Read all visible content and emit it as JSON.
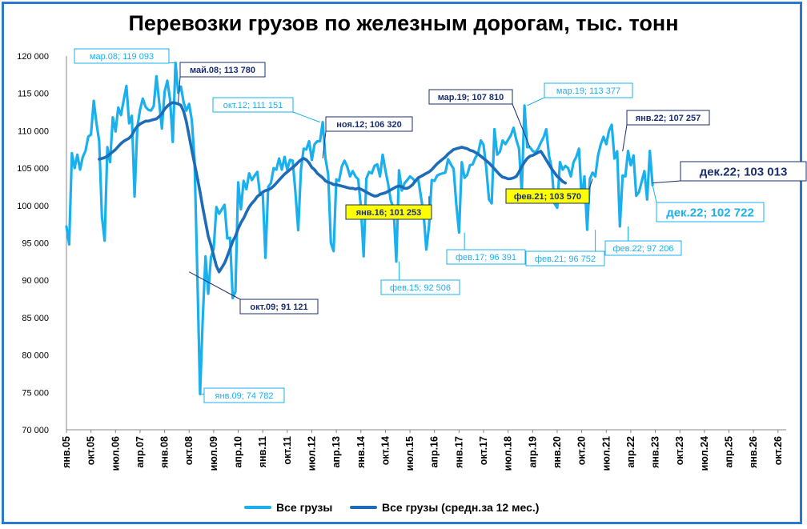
{
  "chart_data": {
    "type": "line",
    "title": "Перевозки грузов по железным дорогам, тыс. тонн",
    "xlabel": "",
    "ylabel": "",
    "ylim": [
      70000,
      120000
    ],
    "yticks": [
      "70 000",
      "75 000",
      "80 000",
      "85 000",
      "90 000",
      "95 000",
      "100 000",
      "105 000",
      "110 000",
      "115 000",
      "120 000"
    ],
    "xticks": [
      "янв.05",
      "окт.05",
      "июл.06",
      "апр.07",
      "янв.08",
      "окт.08",
      "июл.09",
      "апр.10",
      "янв.11",
      "окт.11",
      "июл.12",
      "апр.13",
      "янв.14",
      "окт.14",
      "июл.15",
      "апр.16",
      "янв.17",
      "окт.17",
      "июл.18",
      "апр.19",
      "янв.20",
      "окт.20",
      "июл.21",
      "апр.22",
      "янв.23",
      "окт.23",
      "июл.24",
      "апр.25",
      "янв.26",
      "окт.26"
    ],
    "x_start": "янв.05",
    "x_months_total": 264,
    "grid": false,
    "legend_position": "bottom",
    "colors": {
      "monthly": "#1ab0ee",
      "avg": "#1e6cb8",
      "frame": "#2a78d0",
      "highlight": "#ffff00",
      "dark_label": "#1a2e6e"
    },
    "series": [
      {
        "name": "Все грузы",
        "values": [
          97200,
          94800,
          107000,
          105000,
          106800,
          104800,
          106500,
          107300,
          109200,
          109500,
          114000,
          111000,
          108600,
          98500,
          95300,
          107800,
          105800,
          111800,
          109900,
          113100,
          112100,
          114100,
          116000,
          111000,
          112000,
          101200,
          110500,
          112800,
          114300,
          113200,
          112800,
          112700,
          113300,
          117300,
          113900,
          110300,
          115200,
          116700,
          114200,
          108500,
          119093,
          115100,
          115900,
          113780,
          112700,
          113600,
          111400,
          106100,
          90700,
          74782,
          85000,
          93200,
          88200,
          93100,
          94200,
          99800,
          98900,
          99500,
          100100,
          95600,
          95700,
          87600,
          88500,
          103100,
          99500,
          103300,
          102200,
          104300,
          103400,
          104000,
          104500,
          101400,
          101600,
          93000,
          102500,
          103000,
          105000,
          104800,
          106300,
          104800,
          106500,
          104800,
          106100,
          106000,
          101800,
          96700,
          104800,
          107600,
          107500,
          108600,
          106100,
          108200,
          108600,
          108600,
          111151,
          106320,
          104200,
          95000,
          93900,
          103500,
          103300,
          105200,
          106000,
          105200,
          103900,
          104600,
          103900,
          103500,
          99800,
          93200,
          103600,
          104500,
          104300,
          105300,
          105500,
          103900,
          106800,
          104700,
          102900,
          100600,
          99700,
          92506,
          104700,
          102000,
          103000,
          103400,
          103900,
          103600,
          103200,
          103600,
          101253,
          98900,
          94100,
          97300,
          103400,
          103300,
          104000,
          104200,
          104300,
          104400,
          106200,
          105500,
          104900,
          100100,
          96391,
          105800,
          103700,
          104100,
          105400,
          105500,
          106400,
          107000,
          108700,
          108100,
          105000,
          100800,
          100300,
          110200,
          106800,
          107200,
          108700,
          108200,
          108800,
          109400,
          110400,
          108800,
          107600,
          101700,
          113377,
          107810,
          107800,
          107300,
          107100,
          107600,
          108400,
          109100,
          110200,
          106700,
          105000,
          100300,
          99700,
          105800,
          104800,
          105300,
          105000,
          103900,
          105800,
          106500,
          107600,
          100800,
          103900,
          96752,
          103570,
          104400,
          103900,
          106700,
          108200,
          109200,
          108200,
          110000,
          110800,
          106300,
          107257,
          97206,
          104000,
          103900,
          107300,
          105400,
          106700,
          101300,
          101800,
          103200,
          104600,
          100800,
          107300,
          102722
        ],
        "first_index": 0
      },
      {
        "name": "Все грузы (средн.за 12 мес.)",
        "values": [
          106200,
          106300,
          106400,
          106600,
          106900,
          107200,
          107500,
          107900,
          108300,
          108600,
          108800,
          109000,
          109400,
          110100,
          110600,
          110900,
          111100,
          111300,
          111300,
          111400,
          111500,
          111600,
          111900,
          112300,
          112900,
          113300,
          113600,
          113780,
          113700,
          113600,
          113400,
          112600,
          111200,
          109300,
          107400,
          105600,
          103700,
          101800,
          99700,
          97800,
          95900,
          94700,
          93300,
          91900,
          91121,
          91700,
          92300,
          93200,
          94200,
          95200,
          95900,
          96900,
          97700,
          98300,
          99100,
          99800,
          100300,
          100700,
          101200,
          101500,
          101800,
          102000,
          102100,
          102300,
          102600,
          103000,
          103400,
          103800,
          104200,
          104500,
          104800,
          105100,
          105400,
          105800,
          106100,
          106320,
          106100,
          105700,
          105100,
          104800,
          104300,
          104000,
          103700,
          103300,
          103100,
          103000,
          102800,
          102800,
          102700,
          102600,
          102500,
          102400,
          102300,
          102300,
          102200,
          102300,
          102200,
          102000,
          101800,
          101600,
          101400,
          101253,
          101300,
          101500,
          101600,
          101700,
          101900,
          102100,
          102300,
          102500,
          102600,
          102500,
          102300,
          102300,
          102500,
          102800,
          103300,
          103700,
          103900,
          104100,
          104300,
          104500,
          104800,
          105200,
          105600,
          105900,
          106200,
          106500,
          106900,
          107200,
          107500,
          107600,
          107700,
          107810,
          107700,
          107600,
          107400,
          107300,
          107100,
          106900,
          106600,
          106300,
          106000,
          105700,
          105300,
          104900,
          104500,
          104100,
          103800,
          103700,
          103570,
          103600,
          103700,
          103900,
          104500,
          105200,
          105800,
          106300,
          106600,
          106700,
          106900,
          107100,
          107257,
          106700,
          106100,
          105500,
          104900,
          104400,
          103900,
          103600,
          103200,
          103013
        ],
        "first_index": 12
      }
    ],
    "annotations": [
      {
        "text": "мар.08; 119 093",
        "style": "light"
      },
      {
        "text": "май.08;  113 780",
        "style": "dark"
      },
      {
        "text": "окт.12; 111 151",
        "style": "light"
      },
      {
        "text": "ноя.12;  106 320",
        "style": "dark"
      },
      {
        "text": "мар.19;  107 810",
        "style": "dark"
      },
      {
        "text": "мар.19; 113 377",
        "style": "light"
      },
      {
        "text": "янв.22;  107 257",
        "style": "dark"
      },
      {
        "text": "дек.22;  103 013",
        "style": "dark-big"
      },
      {
        "text": "дек.22; 102 722",
        "style": "light-big"
      },
      {
        "text": "янв.16;  101 253",
        "style": "yellow"
      },
      {
        "text": "фев.21;  103 570",
        "style": "yellow"
      },
      {
        "text": "фев.17; 96 391",
        "style": "light"
      },
      {
        "text": "фев.21; 96 752",
        "style": "light"
      },
      {
        "text": "фев.22; 97 206",
        "style": "light"
      },
      {
        "text": "фев.15; 92 506",
        "style": "light"
      },
      {
        "text": "окт.09;  91 121",
        "style": "dark"
      },
      {
        "text": "янв.09; 74 782",
        "style": "light"
      }
    ]
  }
}
